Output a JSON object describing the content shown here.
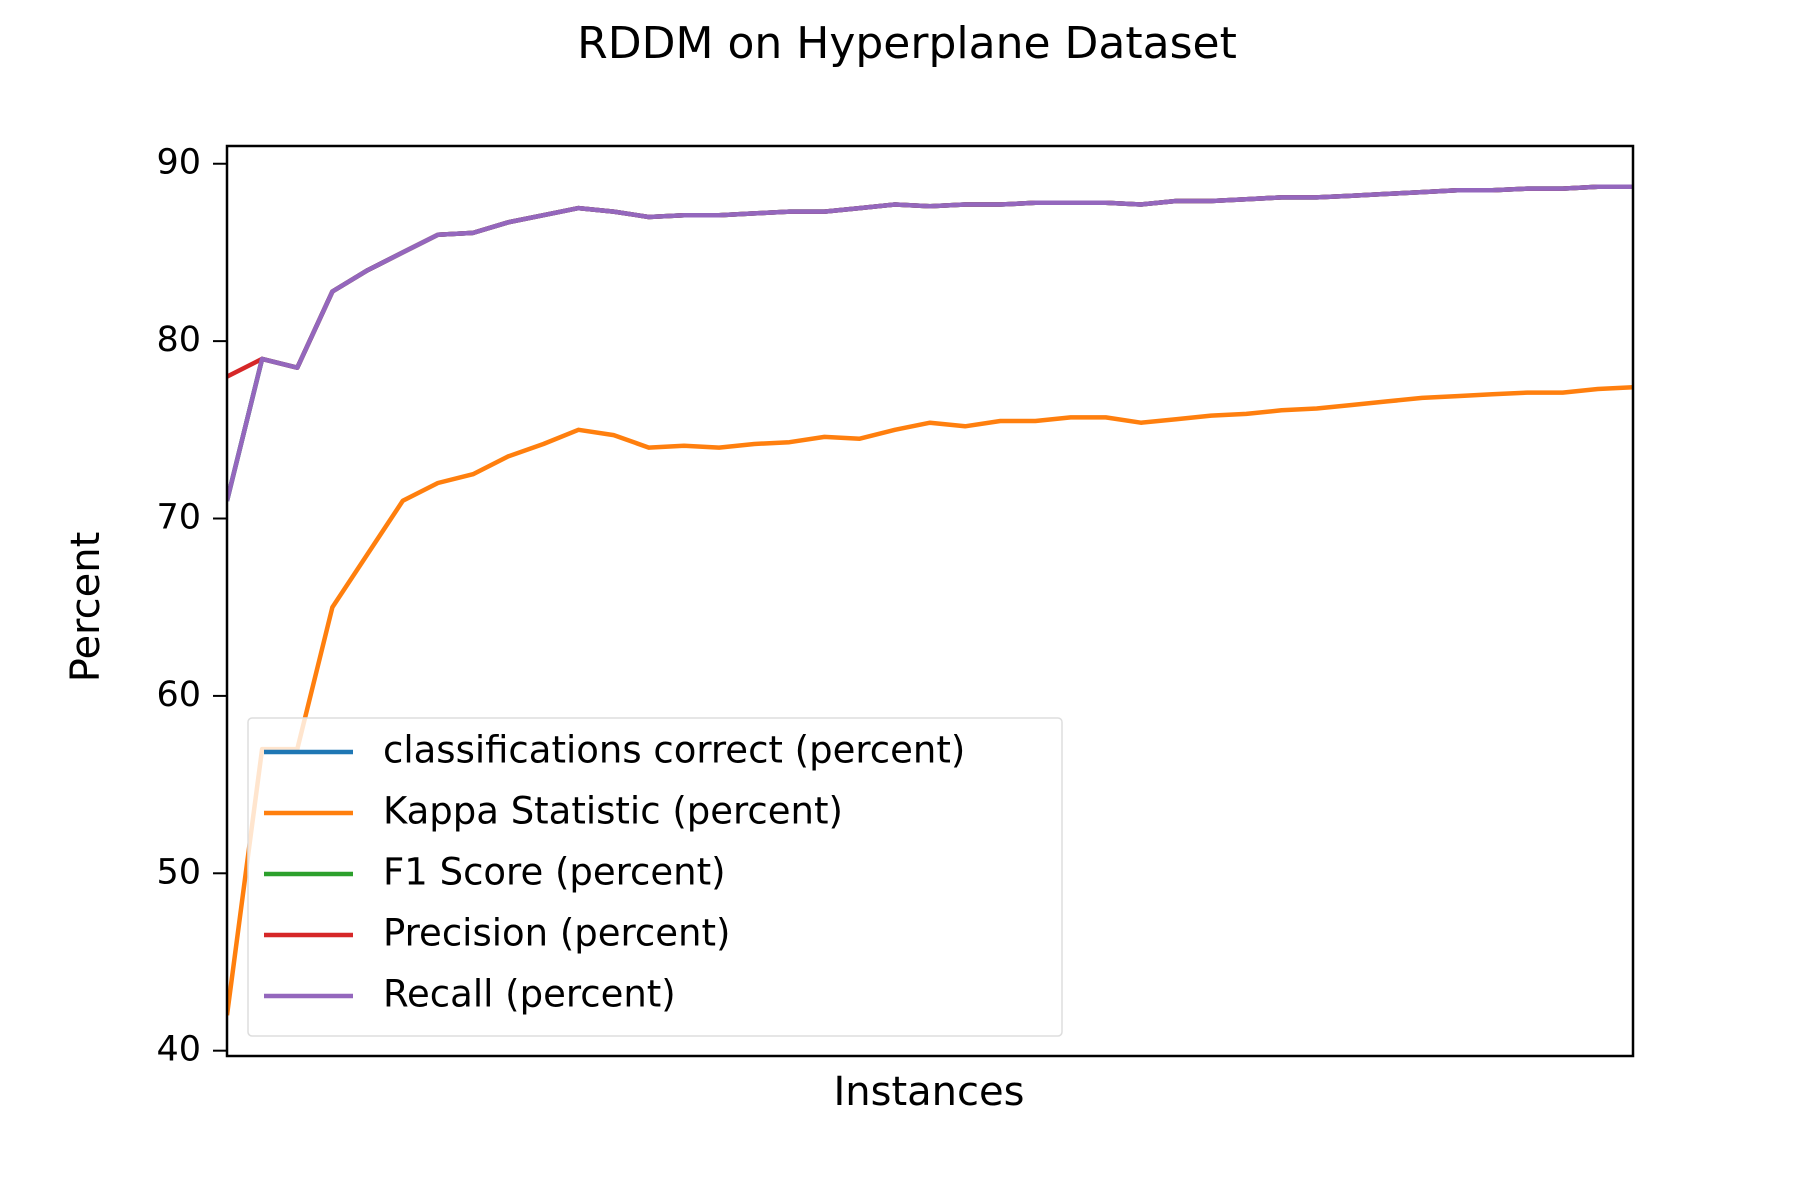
{
  "chart_data": {
    "type": "line",
    "title": "RDDM on Hyperplane Dataset",
    "x_label": "Instances",
    "y_label": "Percent",
    "ylim": [
      39.7,
      91
    ],
    "yticks": [
      40,
      50,
      60,
      70,
      80,
      90
    ],
    "grid": false,
    "legend": "lower left",
    "series": [
      {
        "name": "classifications correct (percent)",
        "color": "#1f77b4",
        "values": [
          71,
          79,
          78.5,
          82.8,
          84,
          85,
          86,
          86.1,
          86.7,
          87.1,
          87.5,
          87.3,
          87,
          87.1,
          87.1,
          87.2,
          87.3,
          87.3,
          87.5,
          87.7,
          87.6,
          87.7,
          87.7,
          87.8,
          87.8,
          87.8,
          87.7,
          87.9,
          87.9,
          88,
          88.1,
          88.1,
          88.2,
          88.3,
          88.4,
          88.5,
          88.5,
          88.6,
          88.6,
          88.7,
          88.7
        ]
      },
      {
        "name": "Kappa Statistic (percent)",
        "color": "#ff7f0e",
        "values": [
          42,
          57,
          57,
          65,
          68,
          71,
          72,
          72.5,
          73.5,
          74.2,
          75,
          74.7,
          74,
          74.1,
          74,
          74.2,
          74.3,
          74.6,
          74.5,
          75,
          75.4,
          75.2,
          75.5,
          75.5,
          75.7,
          75.7,
          75.4,
          75.6,
          75.8,
          75.9,
          76.1,
          76.2,
          76.4,
          76.6,
          76.8,
          76.9,
          77,
          77.1,
          77.1,
          77.3,
          77.4
        ]
      },
      {
        "name": "F1 Score (percent)",
        "color": "#2ca02c",
        "values": [
          71,
          79,
          78.5,
          82.8,
          84,
          85,
          86,
          86.1,
          86.7,
          87.1,
          87.5,
          87.3,
          87,
          87.1,
          87.1,
          87.2,
          87.3,
          87.3,
          87.5,
          87.7,
          87.6,
          87.7,
          87.7,
          87.8,
          87.8,
          87.8,
          87.7,
          87.9,
          87.9,
          88,
          88.1,
          88.1,
          88.2,
          88.3,
          88.4,
          88.5,
          88.5,
          88.6,
          88.6,
          88.7,
          88.7
        ]
      },
      {
        "name": "Precision (percent)",
        "color": "#d62728",
        "values": [
          78,
          79,
          78.5,
          82.8,
          84,
          85,
          86,
          86.1,
          86.7,
          87.1,
          87.5,
          87.3,
          87,
          87.1,
          87.1,
          87.2,
          87.3,
          87.3,
          87.5,
          87.7,
          87.6,
          87.7,
          87.7,
          87.8,
          87.8,
          87.8,
          87.7,
          87.9,
          87.9,
          88,
          88.1,
          88.1,
          88.2,
          88.3,
          88.4,
          88.5,
          88.5,
          88.6,
          88.6,
          88.7,
          88.7
        ]
      },
      {
        "name": "Recall (percent)",
        "color": "#9467bd",
        "values": [
          71,
          79,
          78.5,
          82.8,
          84,
          85,
          86,
          86.1,
          86.7,
          87.1,
          87.5,
          87.3,
          87,
          87.1,
          87.1,
          87.2,
          87.3,
          87.3,
          87.5,
          87.7,
          87.6,
          87.7,
          87.7,
          87.8,
          87.8,
          87.8,
          87.7,
          87.9,
          87.9,
          88,
          88.1,
          88.1,
          88.2,
          88.3,
          88.4,
          88.5,
          88.5,
          88.6,
          88.6,
          88.7,
          88.7
        ]
      }
    ]
  }
}
